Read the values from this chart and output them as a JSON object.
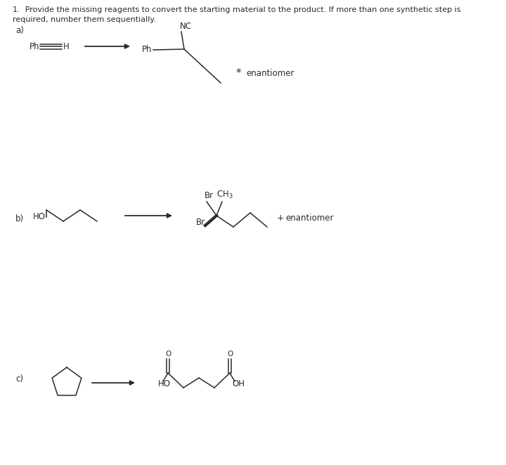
{
  "bg_color": "#ffffff",
  "text_color": "#2a2a2a",
  "title_line1": "1.  Provide the missing reagents to convert the starting material to the product. If more than one synthetic step is",
  "title_line2": "required, number them sequentially.",
  "label_a": "a)",
  "label_b": "b)",
  "label_c": "c)",
  "font_title": 8.0,
  "font_chem": 8.5,
  "font_label": 8.5
}
